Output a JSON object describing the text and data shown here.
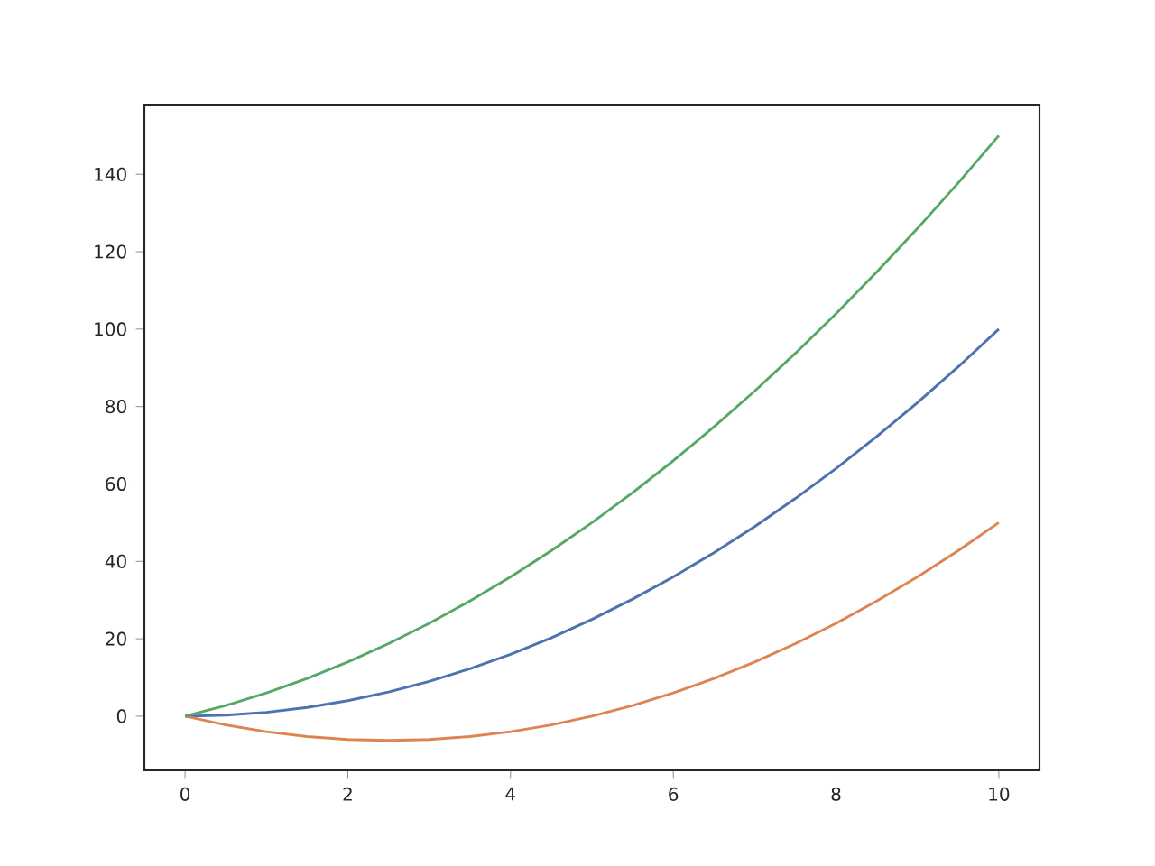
{
  "chart_data": {
    "type": "line",
    "x": [
      0,
      0.5,
      1,
      1.5,
      2,
      2.5,
      3,
      3.5,
      4,
      4.5,
      5,
      5.5,
      6,
      6.5,
      7,
      7.5,
      8,
      8.5,
      9,
      9.5,
      10
    ],
    "series": [
      {
        "color": "#4c72b0",
        "values": [
          0,
          0.25,
          1,
          2.25,
          4,
          6.25,
          9,
          12.25,
          16,
          20.25,
          25,
          30.25,
          36,
          42.25,
          49,
          56.25,
          64,
          72.25,
          81,
          90.25,
          100
        ]
      },
      {
        "color": "#dd8452",
        "values": [
          0,
          -2.25,
          -4,
          -5.25,
          -6,
          -6.25,
          -6,
          -5.25,
          -4,
          -2.25,
          0,
          2.75,
          6,
          9.75,
          14,
          18.75,
          24,
          29.75,
          36,
          42.75,
          50
        ]
      },
      {
        "color": "#55a868",
        "values": [
          0,
          2.75,
          6,
          9.75,
          14,
          18.75,
          24,
          29.75,
          36,
          42.75,
          50,
          57.75,
          66,
          74.75,
          84,
          93.75,
          104,
          114.75,
          126,
          137.75,
          150
        ]
      }
    ],
    "xlim": [
      -0.5,
      10.5
    ],
    "ylim": [
      -14,
      158
    ],
    "xticks": [
      0,
      2,
      4,
      6,
      8,
      10
    ],
    "yticks": [
      0,
      20,
      40,
      60,
      80,
      100,
      120,
      140
    ]
  }
}
